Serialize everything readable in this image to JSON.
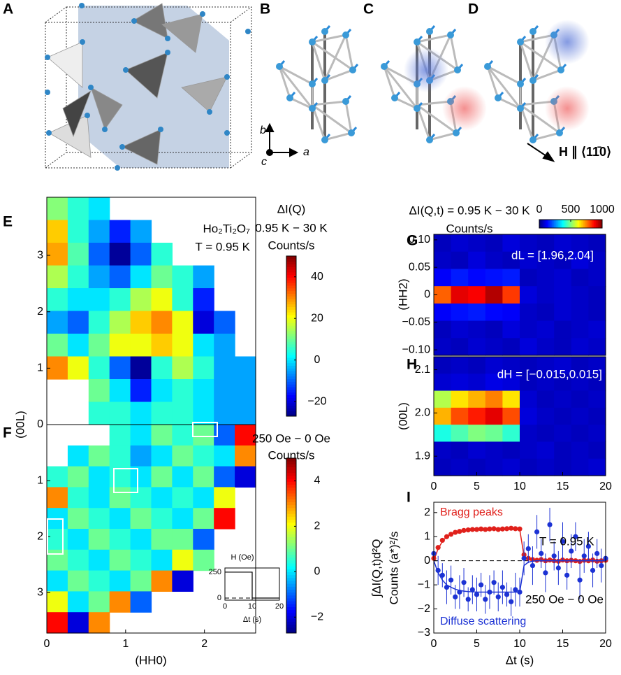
{
  "panel_labels": [
    "A",
    "B",
    "C",
    "D",
    "E",
    "F",
    "G",
    "H",
    "I"
  ],
  "axis_labels": [
    "b",
    "a",
    "c"
  ],
  "field_label": "H ∥ ⟨11̄0⟩",
  "chart_data": [
    {
      "type": "heatmap",
      "colormap": "jet",
      "y_label": "(00L)",
      "annotations": [
        "Ho₂Ti₂O₇",
        "T = 0.95 K"
      ],
      "colorbar_title": [
        "ΔI(Q)",
        "0.95 K − 30 K",
        "Counts/s"
      ],
      "xlim": [
        0,
        2.65
      ],
      "ylim": [
        0,
        4.03
      ],
      "yticks": [
        0,
        1,
        2,
        3
      ],
      "zlim": [
        -27,
        50
      ],
      "zticks": [
        {
          "value": -20,
          "label": "−20"
        },
        0,
        20,
        40
      ],
      "z": [
        [
          12,
          5,
          0,
          null,
          null,
          null,
          null,
          null,
          null,
          null
        ],
        [
          25,
          5,
          -5,
          -15,
          -5,
          null,
          null,
          null,
          null,
          null
        ],
        [
          28,
          8,
          -10,
          -25,
          -10,
          5,
          null,
          null,
          null,
          null
        ],
        [
          15,
          5,
          -5,
          -10,
          0,
          10,
          5,
          -5,
          null,
          null
        ],
        [
          5,
          0,
          0,
          5,
          15,
          20,
          5,
          -15,
          null,
          null
        ],
        [
          -5,
          -10,
          5,
          15,
          25,
          30,
          20,
          -20,
          -10,
          null
        ],
        [
          10,
          0,
          10,
          20,
          20,
          25,
          20,
          0,
          -5,
          null
        ],
        [
          30,
          20,
          5,
          -10,
          -25,
          5,
          15,
          5,
          -5,
          -5
        ],
        [
          null,
          null,
          10,
          0,
          -15,
          0,
          5,
          0,
          -5,
          -5
        ],
        [
          null,
          null,
          5,
          5,
          0,
          5,
          5,
          0,
          -5,
          -5
        ]
      ]
    },
    {
      "type": "heatmap",
      "colormap": "jet",
      "x_label": "(HH0)",
      "y_inverted": true,
      "colorbar_title": [
        "250 Oe − 0 Oe",
        "Counts/s"
      ],
      "xlim": [
        0,
        2.65
      ],
      "ylim": [
        0,
        3.72
      ],
      "xticks": [
        0,
        1,
        2
      ],
      "yticks": [
        1,
        2,
        3
      ],
      "zlim": [
        -2.7,
        5
      ],
      "zticks": [
        {
          "value": -2,
          "label": "−2"
        },
        0,
        2,
        4
      ],
      "z": [
        [
          null,
          null,
          null,
          0.5,
          0,
          1,
          0.5,
          1,
          -1,
          4
        ],
        [
          null,
          0,
          1,
          0.5,
          -0.5,
          0,
          1,
          0.5,
          0,
          3
        ],
        [
          0.5,
          1,
          0,
          0.5,
          0,
          1,
          0,
          1,
          -1,
          -2
        ],
        [
          3,
          0.5,
          0,
          1,
          0.5,
          0,
          0.5,
          0,
          2,
          null
        ],
        [
          0,
          1,
          0.5,
          0,
          1,
          0.5,
          0,
          1,
          4,
          null
        ],
        [
          0.5,
          0,
          1,
          0.5,
          0,
          1,
          1,
          -1,
          null,
          null
        ],
        [
          1,
          0.5,
          0,
          1,
          0.5,
          0,
          2,
          1,
          null,
          null
        ],
        [
          0,
          1,
          0.5,
          0,
          1,
          3,
          -2,
          null,
          null,
          null
        ],
        [
          2,
          0,
          1,
          3,
          -1,
          null,
          null,
          null,
          null,
          null
        ],
        [
          4,
          -2,
          3,
          null,
          null,
          null,
          null,
          null,
          null,
          null
        ]
      ]
    },
    {
      "type": "line",
      "x_label": "Δt (s)",
      "y_label": "H (Oe)",
      "color": "#000000",
      "x": [
        0,
        10,
        10,
        20
      ],
      "values": [
        250,
        250,
        0,
        0
      ],
      "xlim": [
        0,
        20
      ],
      "ylim": [
        -20,
        290
      ],
      "xticks": [
        0,
        10,
        20
      ],
      "yticks": [
        0,
        250
      ]
    },
    {
      "type": "heatmap",
      "colormap": "jet",
      "y_label": "(HH2)",
      "annotations": [
        "dL = [1.96,2.04]"
      ],
      "colorbar_title": [
        "ΔI(Q,t) = 0.95 K − 30 K",
        "Counts/s"
      ],
      "xlim": [
        0,
        20
      ],
      "ylim": [
        -0.11,
        0.11
      ],
      "yticks": [
        {
          "value": -0.1,
          "label": "−0.10"
        },
        {
          "value": -0.05,
          "label": "−0.05"
        },
        0,
        0.05,
        {
          "value": 0.1,
          "label": "0.10"
        }
      ],
      "zlim": [
        0,
        1000
      ],
      "zticks": [
        0,
        500,
        1000
      ],
      "z": [
        [
          60,
          80,
          70,
          60,
          90,
          70,
          60,
          80,
          70,
          60
        ],
        [
          70,
          60,
          90,
          70,
          60,
          80,
          70,
          60,
          90,
          70
        ],
        [
          120,
          150,
          130,
          140,
          150,
          60,
          70,
          80,
          60,
          70
        ],
        [
          780,
          900,
          880,
          950,
          820,
          90,
          70,
          80,
          70,
          60
        ],
        [
          120,
          140,
          150,
          130,
          120,
          70,
          60,
          80,
          70,
          60
        ],
        [
          60,
          80,
          70,
          60,
          90,
          70,
          80,
          60,
          70,
          80
        ],
        [
          70,
          60,
          80,
          70,
          60,
          90,
          70,
          60,
          80,
          70
        ]
      ]
    },
    {
      "type": "heatmap",
      "colormap": "jet",
      "y_label": "(00L)",
      "annotations": [
        "dH = [−0.015,0.015]"
      ],
      "xlim": [
        0,
        20
      ],
      "ylim": [
        1.855,
        2.13
      ],
      "xticks": [
        0,
        5,
        10,
        15,
        20
      ],
      "yticks": [
        1.9,
        {
          "value": 2.0,
          "label": "2.0"
        },
        2.1
      ],
      "zlim": [
        0,
        1000
      ],
      "z": [
        [
          60,
          70,
          60,
          80,
          70,
          60,
          70,
          80,
          60,
          70
        ],
        [
          80,
          90,
          80,
          100,
          90,
          60,
          70,
          60,
          70,
          60
        ],
        [
          550,
          650,
          700,
          750,
          650,
          80,
          60,
          70,
          60,
          70
        ],
        [
          700,
          800,
          850,
          900,
          800,
          90,
          70,
          60,
          70,
          60
        ],
        [
          400,
          450,
          500,
          480,
          420,
          70,
          60,
          70,
          60,
          70
        ],
        [
          70,
          60,
          80,
          70,
          60,
          70,
          80,
          60,
          70,
          60
        ],
        [
          60,
          70,
          60,
          70,
          80,
          60,
          70,
          60,
          70,
          80
        ]
      ]
    },
    {
      "type": "line",
      "x_label": "Δt (s)",
      "y_label": [
        "∫ΔI(Q,t)d²Q",
        "Counts (a*)²/s"
      ],
      "annotations": [
        "T = 0.95 K",
        "250 Oe − 0 Oe"
      ],
      "xlim": [
        0,
        20
      ],
      "ylim": [
        -3,
        2.43
      ],
      "xticks": [
        0,
        5,
        10,
        15,
        20
      ],
      "yticks": [
        {
          "value": -3,
          "label": "−3"
        },
        {
          "value": -2,
          "label": "−2"
        },
        {
          "value": -1,
          "label": "−1"
        },
        0,
        1,
        2
      ],
      "x": [
        0,
        0.5,
        1,
        1.5,
        2,
        2.5,
        3,
        3.5,
        4,
        4.5,
        5,
        5.5,
        6,
        6.5,
        7,
        7.5,
        8,
        8.5,
        9,
        9.5,
        10,
        10.5,
        11,
        11.5,
        12,
        12.5,
        13,
        13.5,
        14,
        14.5,
        15,
        15.5,
        16,
        16.5,
        17,
        17.5,
        18,
        18.5,
        19,
        19.5,
        20
      ],
      "series": [
        {
          "name": "Bragg peaks",
          "color": "#e0201b",
          "values": [
            0.1,
            0.55,
            0.85,
            1.0,
            1.1,
            1.18,
            1.22,
            1.26,
            1.28,
            1.3,
            1.3,
            1.32,
            1.3,
            1.32,
            1.33,
            1.3,
            1.32,
            1.33,
            1.35,
            1.33,
            1.32,
            0.25,
            0.1,
            0.05,
            0.02,
            0.05,
            0,
            0.03,
            0,
            -0.02,
            0.03,
            0,
            0.02,
            0,
            -0.03,
            0.02,
            0,
            0.03,
            -0.02,
            0,
            0.02
          ],
          "fit": [
            0,
            0.5,
            0.8,
            1.0,
            1.1,
            1.18,
            1.23,
            1.26,
            1.28,
            1.29,
            1.3,
            1.3,
            1.3,
            1.3,
            1.3,
            1.3,
            1.3,
            1.3,
            1.3,
            1.3,
            1.3,
            0.2,
            0.06,
            0.02,
            0,
            0,
            0,
            0,
            0,
            0,
            0,
            0,
            0,
            0,
            0,
            0,
            0,
            0,
            0,
            0,
            0
          ]
        },
        {
          "name": "Diffuse scattering",
          "color": "#1c32d4",
          "values": [
            0.3,
            -0.4,
            -0.6,
            -1.1,
            -0.8,
            -1.5,
            -1.3,
            -0.9,
            -1.6,
            -1.2,
            -1.4,
            -1.0,
            -1.6,
            -1.3,
            -0.9,
            -1.5,
            -1.1,
            -1.4,
            -1.7,
            -1.2,
            -1.3,
            0.1,
            0.5,
            -0.2,
            1.2,
            0.3,
            -0.5,
            1.5,
            0.2,
            -0.3,
            0.8,
            -0.6,
            0.4,
            1.0,
            -0.8,
            0.2,
            0.6,
            -0.4,
            0.3,
            -0.2,
            0.1
          ],
          "errors": [
            0.5,
            0.6,
            0.5,
            0.7,
            0.6,
            0.5,
            0.7,
            0.6,
            0.5,
            0.6,
            0.7,
            0.5,
            0.6,
            0.7,
            0.5,
            0.6,
            0.7,
            0.5,
            0.6,
            0.7,
            0.6,
            0.7,
            0.6,
            0.8,
            0.7,
            0.6,
            0.8,
            0.7,
            0.6,
            0.7,
            0.8,
            0.6,
            0.7,
            0.6,
            0.8,
            0.7,
            0.6,
            0.7,
            0.6,
            0.7,
            0.6
          ],
          "fit": [
            0,
            -0.5,
            -0.8,
            -1.0,
            -1.1,
            -1.18,
            -1.23,
            -1.26,
            -1.28,
            -1.29,
            -1.3,
            -1.3,
            -1.3,
            -1.3,
            -1.3,
            -1.3,
            -1.3,
            -1.3,
            -1.3,
            -1.3,
            -1.3,
            -0.2,
            -0.06,
            -0.02,
            0,
            0,
            0,
            0,
            0,
            0,
            0,
            0,
            0,
            0,
            0,
            0,
            0,
            0,
            0,
            0,
            0
          ]
        }
      ]
    }
  ]
}
